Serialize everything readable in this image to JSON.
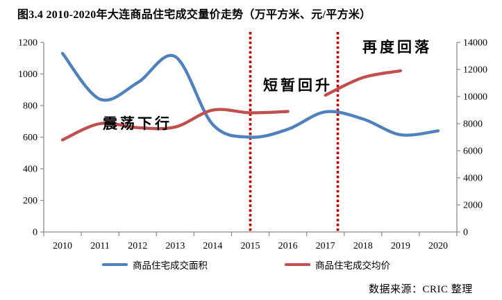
{
  "title": "图3.4  2010-2020年大连商品住宅成交量价走势（万平方米、元/平方米）",
  "annotations": [
    {
      "text": "震荡下行"
    },
    {
      "text": "短暂回升"
    },
    {
      "text": "再度回落"
    }
  ],
  "legend": [
    {
      "label": "商品住宅成交面积",
      "color": "#4F81BD"
    },
    {
      "label": "商品住宅成交均价",
      "color": "#C0504D"
    }
  ],
  "source": "数据来源：CRIC 整理",
  "colors": {
    "area_line": "#4F81BD",
    "price_line": "#C0504D",
    "phase_divider": "#C00000",
    "axis": "#8a8a8a"
  },
  "chart_data": {
    "type": "line",
    "smooth": true,
    "x": [
      2010,
      2011,
      2012,
      2013,
      2014,
      2015,
      2016,
      2017,
      2018,
      2019,
      2020
    ],
    "left_axis": {
      "unit": "万平方米",
      "min": 0,
      "max": 1200,
      "step": 200
    },
    "right_axis": {
      "unit": "元/平方米",
      "min": 0,
      "max": 14000,
      "step": 2000
    },
    "series": [
      {
        "name": "商品住宅成交面积",
        "axis": "left",
        "color": "#4F81BD",
        "segments": [
          {
            "x": [
              2010,
              2011,
              2012,
              2013,
              2014,
              2015,
              2016,
              2017,
              2018,
              2019,
              2020
            ],
            "values": [
              1130,
              840,
              945,
              1110,
              680,
              600,
              650,
              760,
              715,
              615,
              640
            ]
          }
        ]
      },
      {
        "name": "商品住宅成交均价",
        "axis": "right",
        "color": "#C0504D",
        "segments": [
          {
            "x": [
              2010,
              2011,
              2012,
              2013,
              2014,
              2015,
              2016
            ],
            "values": [
              6800,
              8000,
              7700,
              7750,
              9000,
              8800,
              8900
            ]
          },
          {
            "x": [
              2017,
              2018,
              2019
            ],
            "values": [
              10100,
              11400,
              11900
            ]
          }
        ]
      }
    ],
    "phase_lines": [
      {
        "year": 2015.0
      },
      {
        "year": 2017.33
      }
    ],
    "legend_position": "bottom",
    "grid": false
  }
}
